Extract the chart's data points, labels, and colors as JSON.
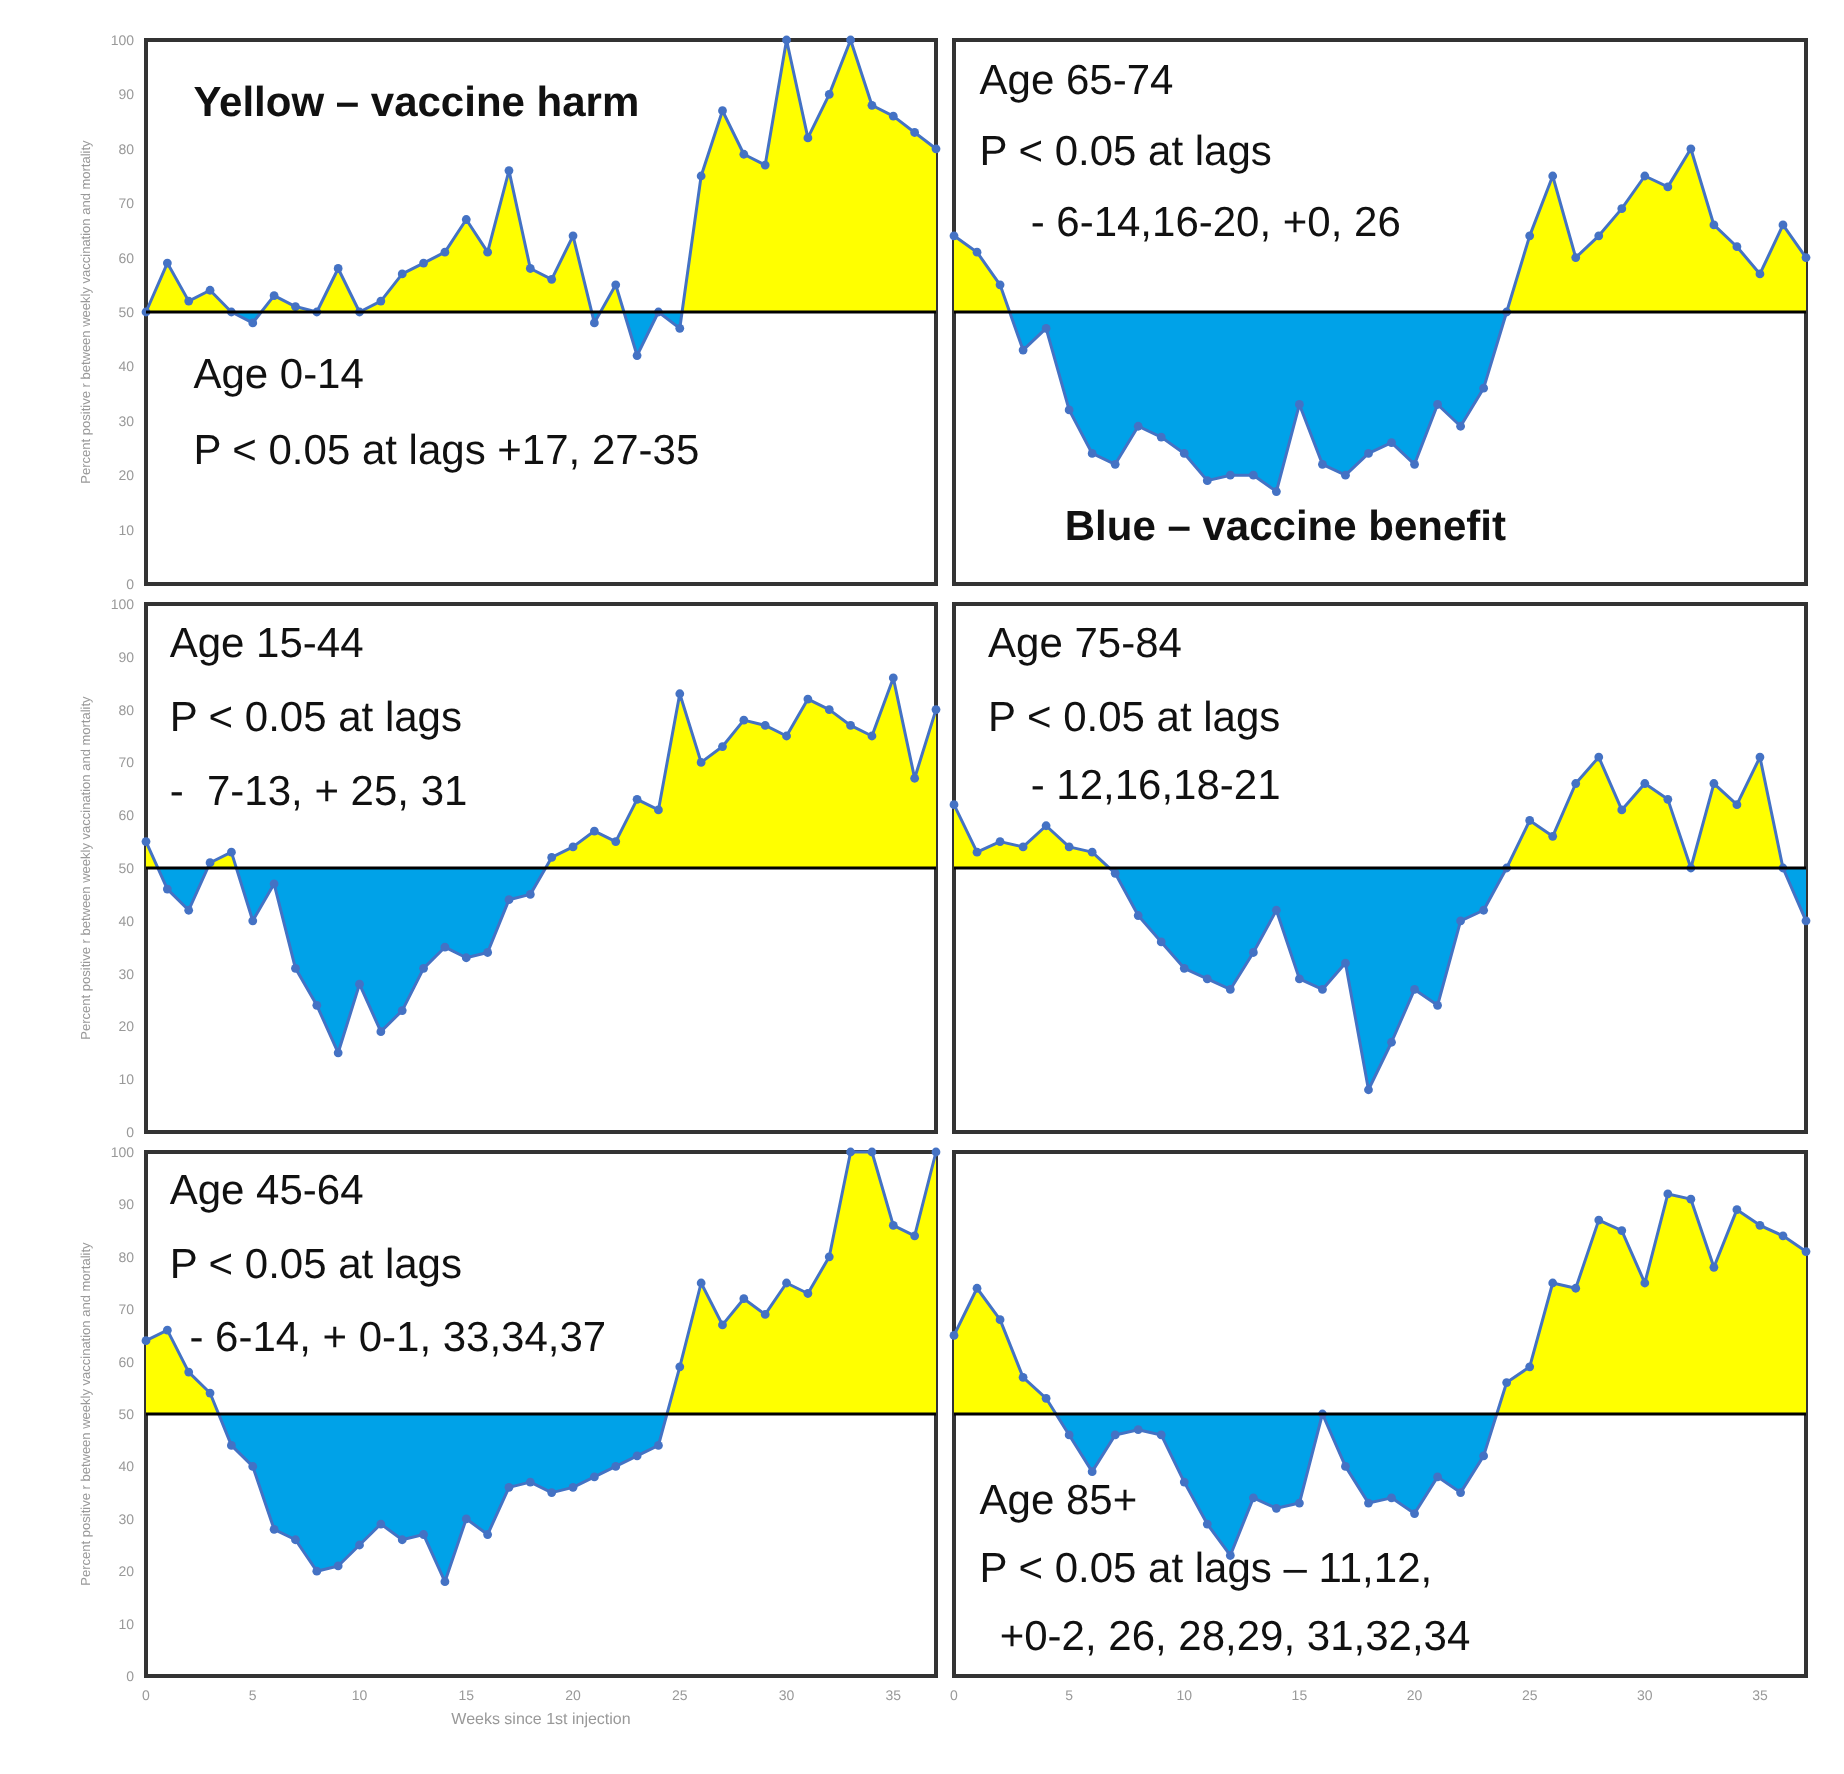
{
  "chart_data": [
    {
      "type": "area",
      "xlim": [
        0,
        37
      ],
      "xticks": [
        0,
        5,
        10,
        15,
        20,
        25,
        30,
        35
      ],
      "ylim": [
        0,
        100
      ],
      "yticks": [
        0,
        10,
        20,
        30,
        40,
        50,
        60,
        70,
        80,
        90,
        100
      ],
      "tick_labels": "y",
      "marker": "circle",
      "ylabel": "Percent positive r between weekly vaccination and mortality",
      "x": [
        0,
        1,
        2,
        3,
        4,
        5,
        6,
        7,
        8,
        9,
        10,
        11,
        12,
        13,
        14,
        15,
        16,
        17,
        18,
        19,
        20,
        21,
        22,
        23,
        24,
        25,
        26,
        27,
        28,
        29,
        30,
        31,
        32,
        33,
        34,
        35,
        36,
        37
      ],
      "series": [
        {
          "color": "#4472c4",
          "colors": [
            "#ffff00",
            "#ffff00",
            "#ffff00",
            "#ffff00",
            "#ffff00",
            "#00a2e8",
            "#ffff00",
            "#ffff00",
            "#ffff00",
            "#ffff00",
            "#ffff00",
            "#ffff00",
            "#ffff00",
            "#ffff00",
            "#ffff00",
            "#ffff00",
            "#ffff00",
            "#ffff00",
            "#ffff00",
            "#ffff00",
            "#ffff00",
            "#00a2e8",
            "#ffff00",
            "#00a2e8",
            "#ffff00",
            "#00a2e8",
            "#ffff00",
            "#ffff00",
            "#ffff00",
            "#ffff00",
            "#ffff00",
            "#ffff00",
            "#ffff00",
            "#ffff00",
            "#ffff00",
            "#ffff00",
            "#ffff00",
            "#ffff00"
          ],
          "values": [
            50,
            59,
            52,
            54,
            50,
            48,
            53,
            51,
            50,
            58,
            50,
            52,
            57,
            59,
            61,
            67,
            61,
            76,
            58,
            56,
            64,
            48,
            55,
            42,
            50,
            47,
            75,
            87,
            79,
            77,
            100,
            82,
            90,
            100,
            88,
            86,
            83,
            80
          ]
        }
      ],
      "ref_lines": [
        {
          "axis": "y",
          "value": 50,
          "color": "#000000"
        }
      ],
      "annotations": [
        "Yellow – vaccine harm",
        "Age 0-14",
        "P < 0.05 at lags +17, 27-35"
      ]
    },
    {
      "type": "area",
      "xlim": [
        0,
        37
      ],
      "xticks": [
        0,
        5,
        10,
        15,
        20,
        25,
        30,
        35
      ],
      "ylim": [
        0,
        100
      ],
      "yticks": [
        0,
        10,
        20,
        30,
        40,
        50,
        60,
        70,
        80,
        90,
        100
      ],
      "tick_labels": false,
      "marker": "circle",
      "x": [
        0,
        1,
        2,
        3,
        4,
        5,
        6,
        7,
        8,
        9,
        10,
        11,
        12,
        13,
        14,
        15,
        16,
        17,
        18,
        19,
        20,
        21,
        22,
        23,
        24,
        25,
        26,
        27,
        28,
        29,
        30,
        31,
        32,
        33,
        34,
        35,
        36,
        37
      ],
      "series": [
        {
          "color": "#4472c4",
          "colors": [
            "#ffff00",
            "#ffff00",
            "#ffff00",
            "#00a2e8",
            "#00a2e8",
            "#00a2e8",
            "#00a2e8",
            "#00a2e8",
            "#00a2e8",
            "#00a2e8",
            "#00a2e8",
            "#00a2e8",
            "#00a2e8",
            "#00a2e8",
            "#00a2e8",
            "#00a2e8",
            "#00a2e8",
            "#00a2e8",
            "#00a2e8",
            "#00a2e8",
            "#00a2e8",
            "#00a2e8",
            "#00a2e8",
            "#00a2e8",
            "#00a2e8",
            "#ffff00",
            "#ffff00",
            "#ffff00",
            "#ffff00",
            "#ffff00",
            "#ffff00",
            "#ffff00",
            "#ffff00",
            "#ffff00",
            "#ffff00",
            "#ffff00",
            "#ffff00",
            "#ffff00"
          ],
          "values": [
            64,
            61,
            55,
            43,
            47,
            32,
            24,
            22,
            29,
            27,
            24,
            19,
            20,
            20,
            17,
            33,
            22,
            20,
            24,
            26,
            22,
            33,
            29,
            36,
            50,
            64,
            75,
            60,
            64,
            69,
            75,
            73,
            80,
            66,
            62,
            57,
            66,
            60
          ]
        }
      ],
      "ref_lines": [
        {
          "axis": "y",
          "value": 50,
          "color": "#000000"
        }
      ],
      "annotations": [
        "Age 65-74",
        "P < 0.05 at lags",
        "- 6-14,16-20, +0, 26",
        "Blue – vaccine benefit"
      ]
    },
    {
      "type": "area",
      "xlim": [
        0,
        37
      ],
      "xticks": [
        0,
        5,
        10,
        15,
        20,
        25,
        30,
        35
      ],
      "ylim": [
        0,
        100
      ],
      "yticks": [
        0,
        10,
        20,
        30,
        40,
        50,
        60,
        70,
        80,
        90,
        100
      ],
      "tick_labels": "y",
      "marker": "circle",
      "ylabel": "Percent positive r between weekly vaccination and mortality",
      "x": [
        0,
        1,
        2,
        3,
        4,
        5,
        6,
        7,
        8,
        9,
        10,
        11,
        12,
        13,
        14,
        15,
        16,
        17,
        18,
        19,
        20,
        21,
        22,
        23,
        24,
        25,
        26,
        27,
        28,
        29,
        30,
        31,
        32,
        33,
        34,
        35,
        36,
        37
      ],
      "series": [
        {
          "color": "#4472c4",
          "colors": [
            "#ffff00",
            "#00a2e8",
            "#00a2e8",
            "#ffff00",
            "#ffff00",
            "#00a2e8",
            "#00a2e8",
            "#00a2e8",
            "#00a2e8",
            "#00a2e8",
            "#00a2e8",
            "#00a2e8",
            "#00a2e8",
            "#00a2e8",
            "#00a2e8",
            "#00a2e8",
            "#00a2e8",
            "#00a2e8",
            "#00a2e8",
            "#ffff00",
            "#ffff00",
            "#ffff00",
            "#ffff00",
            "#ffff00",
            "#ffff00",
            "#ffff00",
            "#ffff00",
            "#ffff00",
            "#ffff00",
            "#ffff00",
            "#ffff00",
            "#ffff00",
            "#ffff00",
            "#ffff00",
            "#ffff00",
            "#ffff00",
            "#ffff00",
            "#ffff00"
          ],
          "values": [
            55,
            46,
            42,
            51,
            53,
            40,
            47,
            31,
            24,
            15,
            28,
            19,
            23,
            31,
            35,
            33,
            34,
            44,
            45,
            52,
            54,
            57,
            55,
            63,
            61,
            83,
            70,
            73,
            78,
            77,
            75,
            82,
            80,
            77,
            75,
            86,
            67,
            80
          ]
        }
      ],
      "ref_lines": [
        {
          "axis": "y",
          "value": 50,
          "color": "#000000"
        }
      ],
      "annotations": [
        "Age 15-44",
        "P < 0.05 at lags",
        "-  7-13, + 25, 31"
      ]
    },
    {
      "type": "area",
      "xlim": [
        0,
        37
      ],
      "xticks": [
        0,
        5,
        10,
        15,
        20,
        25,
        30,
        35
      ],
      "ylim": [
        0,
        100
      ],
      "yticks": [
        0,
        10,
        20,
        30,
        40,
        50,
        60,
        70,
        80,
        90,
        100
      ],
      "tick_labels": false,
      "marker": "circle",
      "x": [
        0,
        1,
        2,
        3,
        4,
        5,
        6,
        7,
        8,
        9,
        10,
        11,
        12,
        13,
        14,
        15,
        16,
        17,
        18,
        19,
        20,
        21,
        22,
        23,
        24,
        25,
        26,
        27,
        28,
        29,
        30,
        31,
        32,
        33,
        34,
        35,
        36,
        37
      ],
      "series": [
        {
          "color": "#4472c4",
          "colors": [
            "#ffff00",
            "#ffff00",
            "#ffff00",
            "#ffff00",
            "#ffff00",
            "#ffff00",
            "#ffff00",
            "#00a2e8",
            "#00a2e8",
            "#00a2e8",
            "#00a2e8",
            "#00a2e8",
            "#00a2e8",
            "#00a2e8",
            "#00a2e8",
            "#00a2e8",
            "#00a2e8",
            "#00a2e8",
            "#00a2e8",
            "#00a2e8",
            "#00a2e8",
            "#00a2e8",
            "#00a2e8",
            "#00a2e8",
            "#00a2e8",
            "#ffff00",
            "#ffff00",
            "#ffff00",
            "#ffff00",
            "#ffff00",
            "#ffff00",
            "#ffff00",
            "#ffff00",
            "#ffff00",
            "#ffff00",
            "#ffff00",
            "#ffff00",
            "#00a2e8"
          ],
          "values": [
            62,
            53,
            55,
            54,
            58,
            54,
            53,
            49,
            41,
            36,
            31,
            29,
            27,
            34,
            42,
            29,
            27,
            32,
            8,
            17,
            27,
            24,
            40,
            42,
            50,
            59,
            56,
            66,
            71,
            61,
            66,
            63,
            50,
            66,
            62,
            71,
            50,
            40
          ]
        }
      ],
      "ref_lines": [
        {
          "axis": "y",
          "value": 50,
          "color": "#000000"
        }
      ],
      "annotations": [
        "Age 75-84",
        "P < 0.05 at lags",
        "- 12,16,18-21"
      ]
    },
    {
      "type": "area",
      "xlim": [
        0,
        37
      ],
      "xticks": [
        0,
        5,
        10,
        15,
        20,
        25,
        30,
        35
      ],
      "ylim": [
        0,
        100
      ],
      "yticks": [
        0,
        10,
        20,
        30,
        40,
        50,
        60,
        70,
        80,
        90,
        100
      ],
      "marker": "circle",
      "ylabel": "Percent positive r between weekly vaccination and mortality",
      "xlabel": "Weeks since 1st injection",
      "x": [
        0,
        1,
        2,
        3,
        4,
        5,
        6,
        7,
        8,
        9,
        10,
        11,
        12,
        13,
        14,
        15,
        16,
        17,
        18,
        19,
        20,
        21,
        22,
        23,
        24,
        25,
        26,
        27,
        28,
        29,
        30,
        31,
        32,
        33,
        34,
        35,
        36,
        37
      ],
      "series": [
        {
          "color": "#4472c4",
          "colors": [
            "#ffff00",
            "#ffff00",
            "#ffff00",
            "#ffff00",
            "#00a2e8",
            "#00a2e8",
            "#00a2e8",
            "#00a2e8",
            "#00a2e8",
            "#00a2e8",
            "#00a2e8",
            "#00a2e8",
            "#00a2e8",
            "#00a2e8",
            "#00a2e8",
            "#00a2e8",
            "#00a2e8",
            "#00a2e8",
            "#00a2e8",
            "#00a2e8",
            "#00a2e8",
            "#00a2e8",
            "#00a2e8",
            "#00a2e8",
            "#00a2e8",
            "#ffff00",
            "#ffff00",
            "#ffff00",
            "#ffff00",
            "#ffff00",
            "#ffff00",
            "#ffff00",
            "#ffff00",
            "#ffff00",
            "#ffff00",
            "#ffff00",
            "#ffff00",
            "#ffff00"
          ],
          "values": [
            64,
            66,
            58,
            54,
            44,
            40,
            28,
            26,
            20,
            21,
            25,
            29,
            26,
            27,
            18,
            30,
            27,
            36,
            37,
            35,
            36,
            38,
            40,
            42,
            44,
            59,
            75,
            67,
            72,
            69,
            75,
            73,
            80,
            100,
            100,
            86,
            84,
            100
          ]
        }
      ],
      "ref_lines": [
        {
          "axis": "y",
          "value": 50,
          "color": "#000000"
        }
      ],
      "annotations": [
        "Age 45-64",
        "P < 0.05 at lags",
        "- 6-14, + 0-1, 33,34,37"
      ]
    },
    {
      "type": "area",
      "xlim": [
        0,
        37
      ],
      "xticks": [
        0,
        5,
        10,
        15,
        20,
        25,
        30,
        35
      ],
      "ylim": [
        0,
        100
      ],
      "yticks": [
        0,
        10,
        20,
        30,
        40,
        50,
        60,
        70,
        80,
        90,
        100
      ],
      "tick_labels": "x",
      "marker": "circle",
      "x": [
        0,
        1,
        2,
        3,
        4,
        5,
        6,
        7,
        8,
        9,
        10,
        11,
        12,
        13,
        14,
        15,
        16,
        17,
        18,
        19,
        20,
        21,
        22,
        23,
        24,
        25,
        26,
        27,
        28,
        29,
        30,
        31,
        32,
        33,
        34,
        35,
        36,
        37
      ],
      "series": [
        {
          "color": "#4472c4",
          "colors": [
            "#ffff00",
            "#ffff00",
            "#ffff00",
            "#ffff00",
            "#ffff00",
            "#00a2e8",
            "#00a2e8",
            "#00a2e8",
            "#00a2e8",
            "#00a2e8",
            "#00a2e8",
            "#00a2e8",
            "#00a2e8",
            "#00a2e8",
            "#00a2e8",
            "#00a2e8",
            "#00a2e8",
            "#00a2e8",
            "#00a2e8",
            "#00a2e8",
            "#00a2e8",
            "#00a2e8",
            "#00a2e8",
            "#00a2e8",
            "#ffff00",
            "#ffff00",
            "#ffff00",
            "#ffff00",
            "#ffff00",
            "#ffff00",
            "#ffff00",
            "#ffff00",
            "#ffff00",
            "#ffff00",
            "#ffff00",
            "#ffff00",
            "#ffff00",
            "#ffff00"
          ],
          "values": [
            65,
            74,
            68,
            57,
            53,
            46,
            39,
            46,
            47,
            46,
            37,
            29,
            23,
            34,
            32,
            33,
            50,
            40,
            33,
            34,
            31,
            38,
            35,
            42,
            56,
            59,
            75,
            74,
            87,
            85,
            75,
            92,
            91,
            78,
            89,
            86,
            84,
            81
          ]
        }
      ],
      "ref_lines": [
        {
          "axis": "y",
          "value": 50,
          "color": "#000000"
        }
      ],
      "annotations": [
        "Age 85+",
        "P < 0.05 at lags – 11,12,",
        " +0-2, 26, 28,29, 31,32,34"
      ]
    }
  ]
}
